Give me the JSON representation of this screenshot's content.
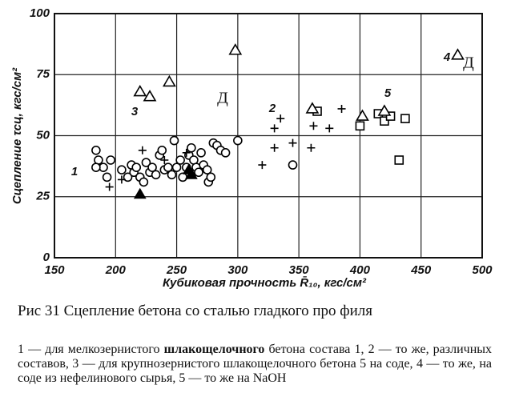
{
  "chart_data": {
    "type": "scatter",
    "ylabel": "Сцепление τсц, кгс/см²",
    "xlabel": "Кубиковая прочность R̄₁₀, кгс/см²",
    "xlim": [
      150,
      500
    ],
    "xticks": [
      150,
      200,
      250,
      300,
      350,
      400,
      450,
      500
    ],
    "ylim": [
      0,
      100
    ],
    "yticks": [
      0,
      25,
      50,
      75,
      100
    ],
    "grid": true,
    "series": [
      {
        "name": "1",
        "marker": "circle",
        "color": "#000000",
        "x": [
          184,
          186,
          190,
          193,
          196,
          205,
          210,
          213,
          215,
          217,
          220,
          223,
          225,
          228,
          230,
          233,
          236,
          238,
          240,
          243,
          246,
          248,
          250,
          253,
          255,
          258,
          260,
          262,
          264,
          266,
          268,
          270,
          272,
          275,
          276,
          278,
          280,
          283,
          286,
          290,
          300,
          345,
          184
        ],
        "values": [
          44,
          40,
          37,
          33,
          40,
          36,
          33,
          38,
          35,
          37,
          33,
          31,
          39,
          35,
          37,
          34,
          42,
          44,
          36,
          37,
          34,
          48,
          37,
          40,
          33,
          37,
          42,
          45,
          40,
          37,
          35,
          43,
          38,
          36,
          31,
          33,
          47,
          46,
          44,
          43,
          48,
          38,
          37
        ]
      },
      {
        "marker": "triangle-filled",
        "color": "#000000",
        "x": [
          220,
          262,
          260
        ],
        "values": [
          26,
          34,
          36
        ]
      },
      {
        "name": "2",
        "marker": "plus",
        "color": "#000000",
        "x": [
          195,
          205,
          222,
          240,
          258,
          320,
          330,
          330,
          335,
          345,
          360,
          362,
          375,
          385
        ],
        "values": [
          29,
          32,
          44,
          40,
          43,
          38,
          45,
          53,
          57,
          47,
          45,
          54,
          53,
          61
        ]
      },
      {
        "name": "3",
        "marker": "triangle",
        "color": "#000000",
        "x": [
          220,
          228,
          244,
          298
        ],
        "values": [
          68,
          66,
          72,
          85
        ]
      },
      {
        "name": "4",
        "marker": "triangle",
        "color": "#000000",
        "x": [
          480
        ],
        "values": [
          83
        ]
      },
      {
        "name": "5",
        "marker": "square",
        "color": "#000000",
        "x": [
          365,
          400,
          415,
          420,
          425,
          437,
          432
        ],
        "values": [
          60,
          54,
          59,
          56,
          58,
          57,
          40
        ]
      },
      {
        "marker": "triangle",
        "color": "#000000",
        "x": [
          361,
          402,
          420
        ],
        "values": [
          61,
          58,
          60
        ]
      }
    ],
    "annotations": [
      "Д",
      "Д"
    ]
  },
  "figure": {
    "caption": "Рис 31  Сцепление бетона со сталью гладкого про филя",
    "description_start": "1 — для мелкозернистого ",
    "description_bold": "шлакощелочного",
    "description_end": " бетона состава 1, 2 — то же, различных составов, 3 — для крупнозернистого шлакощелочного бетона 5 на соде, 4 — то же, на соде из нефелинового сырья, 5 — то же на NaOH"
  }
}
